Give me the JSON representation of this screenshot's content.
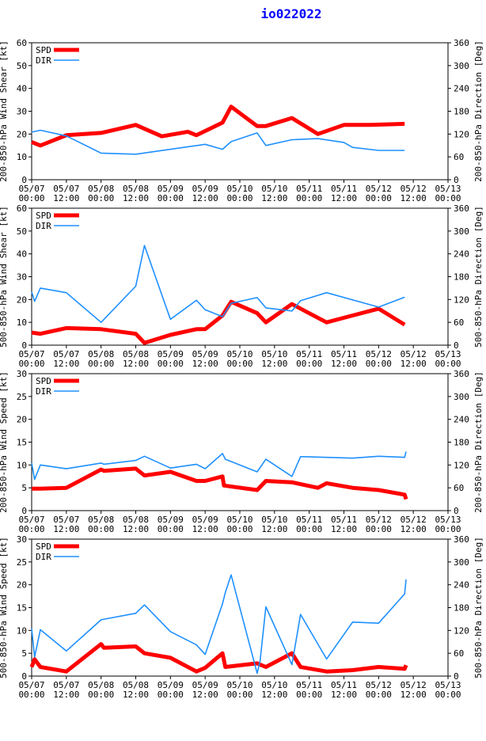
{
  "title": "io022022",
  "colors": {
    "spd": "#ff0000",
    "dir": "#1e90ff",
    "title": "#0000ff",
    "axis": "#000000"
  },
  "legend": {
    "spd": "SPD",
    "dir": "DIR"
  },
  "x_ticks": [
    {
      "date": "05/07",
      "time": "00:00"
    },
    {
      "date": "05/07",
      "time": "12:00"
    },
    {
      "date": "05/08",
      "time": "00:00"
    },
    {
      "date": "05/08",
      "time": "12:00"
    },
    {
      "date": "05/09",
      "time": "00:00"
    },
    {
      "date": "05/09",
      "time": "12:00"
    },
    {
      "date": "05/10",
      "time": "00:00"
    },
    {
      "date": "05/10",
      "time": "12:00"
    },
    {
      "date": "05/11",
      "time": "00:00"
    },
    {
      "date": "05/11",
      "time": "12:00"
    },
    {
      "date": "05/12",
      "time": "00:00"
    },
    {
      "date": "05/12",
      "time": "12:00"
    },
    {
      "date": "05/13",
      "time": "00:00"
    }
  ],
  "chart_data": [
    {
      "type": "line",
      "ylabel_left": "200-850-hPa Wind Shear [kt]",
      "ylabel_right": "200-850-hPa Direction [Deg]",
      "ylim_left": [
        0,
        60
      ],
      "yticks_left": [
        0,
        10,
        20,
        30,
        40,
        50,
        60
      ],
      "ylim_right": [
        0,
        360
      ],
      "yticks_right": [
        0,
        60,
        120,
        180,
        240,
        300,
        360
      ],
      "xlim_hours": [
        0,
        144
      ],
      "series": [
        {
          "name": "SPD",
          "axis": "left",
          "x": [
            0,
            3,
            12,
            24,
            36,
            45,
            54,
            57,
            66,
            69,
            78,
            81,
            90,
            99,
            108,
            117,
            129
          ],
          "y": [
            16.5,
            15,
            19.5,
            20.5,
            24,
            19,
            21,
            19.5,
            25,
            32,
            23.5,
            23.5,
            27,
            20,
            24,
            24,
            24.5
          ]
        },
        {
          "name": "DIR",
          "axis": "right",
          "x": [
            0,
            3,
            12,
            24,
            36,
            48,
            60,
            66,
            69,
            78,
            81,
            90,
            99,
            108,
            111,
            120,
            129
          ],
          "y": [
            125,
            130,
            115,
            70,
            67,
            80,
            93,
            80,
            100,
            123,
            90,
            105,
            108,
            98,
            85,
            77,
            77
          ]
        }
      ]
    },
    {
      "type": "line",
      "ylabel_left": "500-850-hPa Wind Shear [kt]",
      "ylabel_right": "500-850-hPa Direction [Deg]",
      "ylim_left": [
        0,
        60
      ],
      "yticks_left": [
        0,
        10,
        20,
        30,
        40,
        50,
        60
      ],
      "ylim_right": [
        0,
        360
      ],
      "yticks_right": [
        0,
        60,
        120,
        180,
        240,
        300,
        360
      ],
      "xlim_hours": [
        0,
        144
      ],
      "series": [
        {
          "name": "SPD",
          "axis": "left",
          "x": [
            0,
            3,
            12,
            24,
            36,
            39,
            48,
            57,
            60,
            66,
            69,
            78,
            81,
            90,
            99,
            102,
            111,
            120,
            129
          ],
          "y": [
            5.5,
            5,
            7.5,
            7,
            5,
            1,
            4.5,
            7,
            7,
            13,
            19,
            14,
            10,
            18,
            12,
            10,
            13,
            16,
            9
          ]
        },
        {
          "name": "DIR",
          "axis": "right",
          "x": [
            0,
            1,
            3,
            12,
            24,
            36,
            39,
            48,
            57,
            60,
            66,
            69,
            78,
            81,
            90,
            93,
            102,
            120,
            129
          ],
          "y": [
            140,
            115,
            150,
            138,
            60,
            155,
            262,
            68,
            118,
            93,
            75,
            110,
            125,
            98,
            90,
            117,
            138,
            100,
            126
          ]
        }
      ]
    },
    {
      "type": "line",
      "ylabel_left": "200-850-hPa Wind Speed [kt]",
      "ylabel_right": "200-850-hPa Direction [Deg]",
      "ylim_left": [
        0,
        30
      ],
      "yticks_left": [
        0,
        5,
        10,
        15,
        20,
        25,
        30
      ],
      "ylim_right": [
        0,
        360
      ],
      "yticks_right": [
        0,
        60,
        120,
        180,
        240,
        300,
        360
      ],
      "xlim_hours": [
        0,
        144
      ],
      "series": [
        {
          "name": "SPD",
          "axis": "left",
          "x": [
            0,
            3,
            12,
            24,
            25,
            36,
            39,
            48,
            57,
            60,
            66,
            66.5,
            78,
            81,
            90,
            99,
            102,
            111,
            120,
            129,
            129.5
          ],
          "y": [
            4.8,
            4.8,
            5,
            9,
            8.7,
            9.2,
            7.7,
            8.5,
            6.5,
            6.5,
            7.5,
            5.5,
            4.5,
            6.5,
            6.2,
            5,
            6,
            5,
            4.5,
            3.5,
            2.5
          ]
        },
        {
          "name": "DIR",
          "axis": "right",
          "x": [
            0,
            1,
            3,
            12,
            24,
            25,
            36,
            39,
            48,
            57,
            60,
            66,
            67,
            78,
            81,
            90,
            93,
            102,
            111,
            120,
            129,
            129.5
          ],
          "y": [
            125,
            82,
            120,
            110,
            125,
            122,
            132,
            143,
            112,
            122,
            110,
            150,
            135,
            102,
            135,
            90,
            142,
            140,
            138,
            143,
            140,
            155
          ]
        }
      ]
    },
    {
      "type": "line",
      "ylabel_left": "500-850-hPa Wind Speed [kt]",
      "ylabel_right": "500-850-hPa Direction [Deg]",
      "ylim_left": [
        0,
        30
      ],
      "yticks_left": [
        0,
        5,
        10,
        15,
        20,
        25,
        30
      ],
      "ylim_right": [
        0,
        360
      ],
      "yticks_right": [
        0,
        60,
        120,
        180,
        240,
        300,
        360
      ],
      "xlim_hours": [
        0,
        144
      ],
      "series": [
        {
          "name": "SPD",
          "axis": "left",
          "x": [
            0,
            1,
            3,
            12,
            24,
            25,
            36,
            39,
            48,
            57,
            60,
            66,
            67,
            78,
            81,
            90,
            93,
            102,
            111,
            120,
            129,
            129.5
          ],
          "y": [
            2,
            3.7,
            2,
            1,
            7,
            6.2,
            6.5,
            5,
            4,
            1,
            1.8,
            5,
            2,
            2.8,
            2,
            5,
            2,
            1,
            1.3,
            2,
            1.6,
            2.4
          ]
        },
        {
          "name": "DIR",
          "axis": "right",
          "x": [
            0,
            1,
            3,
            12,
            24,
            36,
            39,
            48,
            57,
            60,
            66,
            67,
            69,
            78,
            79,
            81,
            90,
            93,
            102,
            111,
            120,
            129,
            129.5
          ],
          "y": [
            125,
            50,
            122,
            66,
            148,
            165,
            187,
            117,
            82,
            57,
            190,
            220,
            266,
            7,
            40,
            182,
            30,
            162,
            45,
            142,
            139,
            216,
            254
          ]
        }
      ]
    }
  ]
}
